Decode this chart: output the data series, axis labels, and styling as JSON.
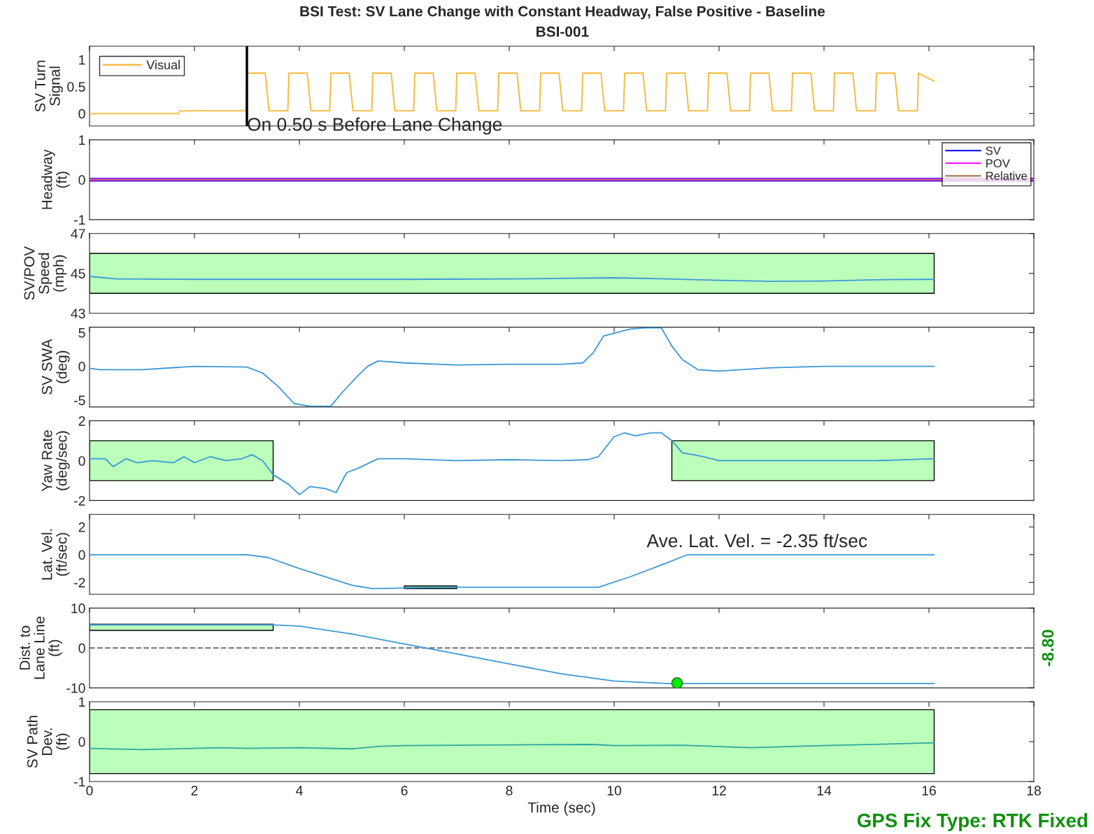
{
  "chart_data": [
    {
      "type": "line",
      "title": "BSI Test: SV Lane Change with Constant Headway, False Positive - Baseline",
      "subtitle": "BSI-001",
      "ylabel": "SV Turn\nSignal",
      "xlim": [
        0,
        18
      ],
      "xticks": [
        0,
        2,
        4,
        6,
        8,
        10,
        12,
        14,
        16,
        18
      ],
      "ylim": [
        -0.23,
        1.25
      ],
      "yticks": [
        0,
        0.5,
        1
      ],
      "tick_labels": "y",
      "legend": "top left",
      "line_style": "solid",
      "grid": false,
      "marker": "none",
      "series": [
        {
          "name": "Visual",
          "color": "#f7b534",
          "x": [
            0,
            1.7,
            1.72,
            2.98,
            3.0,
            3.35,
            3.42,
            3.78,
            3.8,
            4.15,
            4.22,
            4.58,
            4.6,
            4.95,
            5.02,
            5.38,
            5.4,
            5.75,
            5.82,
            6.18,
            6.2,
            6.55,
            6.62,
            6.98,
            7.0,
            7.35,
            7.42,
            7.78,
            7.8,
            8.15,
            8.22,
            8.58,
            8.6,
            8.95,
            9.02,
            9.38,
            9.4,
            9.75,
            9.82,
            10.18,
            10.2,
            10.55,
            10.62,
            10.98,
            11.0,
            11.35,
            11.42,
            11.78,
            11.8,
            12.15,
            12.22,
            12.58,
            12.6,
            12.95,
            13.02,
            13.38,
            13.4,
            13.75,
            13.82,
            14.18,
            14.2,
            14.55,
            14.62,
            14.98,
            15.0,
            15.35,
            15.42,
            15.78,
            15.8,
            16.1
          ],
          "values": [
            0,
            0,
            0.05,
            0.05,
            0.75,
            0.75,
            0.05,
            0.05,
            0.75,
            0.75,
            0.05,
            0.05,
            0.75,
            0.75,
            0.05,
            0.05,
            0.75,
            0.75,
            0.05,
            0.05,
            0.75,
            0.75,
            0.05,
            0.05,
            0.75,
            0.75,
            0.05,
            0.05,
            0.75,
            0.75,
            0.05,
            0.05,
            0.75,
            0.75,
            0.05,
            0.05,
            0.75,
            0.75,
            0.05,
            0.05,
            0.75,
            0.75,
            0.05,
            0.05,
            0.75,
            0.75,
            0.05,
            0.05,
            0.75,
            0.75,
            0.05,
            0.05,
            0.75,
            0.75,
            0.05,
            0.05,
            0.75,
            0.75,
            0.05,
            0.05,
            0.75,
            0.75,
            0.05,
            0.05,
            0.75,
            0.75,
            0.05,
            0.05,
            0.75,
            0.6
          ]
        }
      ],
      "ref_lines": [
        {
          "axis": "x",
          "value": 3.0,
          "label": "On 0.50 s Before Lane Change",
          "color": "#000000",
          "line_style": "solid"
        }
      ]
    },
    {
      "type": "line",
      "ylabel": "Headway\n(ft)",
      "xlim": [
        0,
        18
      ],
      "xticks": [
        0,
        2,
        4,
        6,
        8,
        10,
        12,
        14,
        16,
        18
      ],
      "ylim": [
        -1,
        1
      ],
      "yticks": [
        -1,
        0,
        1
      ],
      "tick_labels": "y",
      "legend": "top right",
      "line_style": "solid",
      "grid": false,
      "marker": "none",
      "series": [
        {
          "name": "SV",
          "color": "#0000ff",
          "x": [
            0,
            18
          ],
          "values": [
            0,
            0
          ]
        },
        {
          "name": "POV",
          "color": "#ff00ff",
          "x": [
            0,
            18
          ],
          "values": [
            0,
            0
          ]
        },
        {
          "name": "Relative",
          "color": "#a57a57",
          "x": [
            0,
            18
          ],
          "values": [
            0,
            0
          ]
        }
      ]
    },
    {
      "type": "line",
      "ylabel": "SV/POV\nSpeed\n(mph)",
      "xlim": [
        0,
        18
      ],
      "xticks": [
        0,
        2,
        4,
        6,
        8,
        10,
        12,
        14,
        16,
        18
      ],
      "ylim": [
        43,
        47
      ],
      "yticks": [
        43,
        45,
        47
      ],
      "tick_labels": "y",
      "line_style": "solid",
      "grid": false,
      "marker": "none",
      "series": [
        {
          "color": "#3b98d8",
          "x": [
            0,
            0.5,
            2,
            4,
            6,
            8,
            10,
            11,
            12,
            13,
            14,
            15,
            16.1
          ],
          "values": [
            44.85,
            44.72,
            44.7,
            44.7,
            44.7,
            44.72,
            44.78,
            44.72,
            44.65,
            44.6,
            44.62,
            44.68,
            44.7
          ],
          "lower": [
            44,
            44,
            44,
            44,
            44,
            44,
            44,
            44,
            44,
            44,
            44,
            44,
            44
          ],
          "upper": [
            46,
            46,
            46,
            46,
            46,
            46,
            46,
            46,
            46,
            46,
            46,
            46,
            46
          ]
        }
      ]
    },
    {
      "type": "line",
      "ylabel": "SV SWA\n(deg)",
      "xlim": [
        0,
        18
      ],
      "xticks": [
        0,
        2,
        4,
        6,
        8,
        10,
        12,
        14,
        16,
        18
      ],
      "ylim": [
        -6,
        5.8
      ],
      "yticks": [
        -5,
        0,
        5
      ],
      "tick_labels": "y",
      "line_style": "solid",
      "grid": false,
      "marker": "none",
      "series": [
        {
          "color": "#3b98d8",
          "x": [
            0,
            0.2,
            1,
            2,
            3,
            3.3,
            3.6,
            3.9,
            4.2,
            4.6,
            4.8,
            5.1,
            5.3,
            5.5,
            6,
            7,
            8,
            9,
            9.4,
            9.6,
            9.8,
            10.3,
            10.6,
            10.9,
            11.1,
            11.3,
            11.6,
            12,
            13,
            14,
            15,
            16.1
          ],
          "values": [
            -0.3,
            -0.5,
            -0.5,
            0,
            -0.1,
            -1,
            -3,
            -5.5,
            -5.9,
            -5.9,
            -4,
            -1.5,
            0,
            0.8,
            0.5,
            0.2,
            0.3,
            0.3,
            0.5,
            2,
            4.5,
            5.5,
            5.7,
            5.7,
            3,
            1,
            -0.5,
            -0.7,
            -0.2,
            0,
            0,
            0
          ]
        }
      ]
    },
    {
      "type": "line",
      "ylabel": "Yaw Rate\n(deg/sec)",
      "xlim": [
        0,
        18
      ],
      "xticks": [
        0,
        2,
        4,
        6,
        8,
        10,
        12,
        14,
        16,
        18
      ],
      "ylim": [
        -2,
        2
      ],
      "yticks": [
        -2,
        0,
        2
      ],
      "tick_labels": "y",
      "line_style": "solid",
      "grid": false,
      "marker": "none",
      "series": [
        {
          "color": "#3b98d8",
          "x": [
            0,
            0.3,
            0.45,
            0.7,
            0.9,
            1.2,
            1.6,
            1.8,
            2,
            2.3,
            2.6,
            2.9,
            3.1,
            3.3,
            3.5,
            3.8,
            4.0,
            4.2,
            4.5,
            4.7,
            4.9,
            5.1,
            5.5,
            6,
            7,
            8,
            9,
            9.5,
            9.7,
            10,
            10.2,
            10.4,
            10.7,
            10.9,
            11.1,
            11.3,
            11.7,
            12,
            13,
            14,
            15,
            16.1
          ],
          "values": [
            0.1,
            0.1,
            -0.3,
            0.1,
            -0.1,
            0,
            -0.1,
            0.2,
            -0.1,
            0.2,
            0,
            0.1,
            0.3,
            0,
            -0.7,
            -1.2,
            -1.7,
            -1.3,
            -1.4,
            -1.6,
            -0.6,
            -0.4,
            0.1,
            0.1,
            0,
            0.05,
            0,
            0.05,
            0.2,
            1.2,
            1.4,
            1.25,
            1.4,
            1.4,
            1,
            0.4,
            0.2,
            0,
            0,
            0,
            0,
            0.1
          ],
          "lower": [
            -1,
            -1,
            -1,
            -1,
            -1,
            -1,
            -1,
            -1,
            -1,
            -1,
            -1,
            -1,
            -1,
            -1,
            -1,
            null,
            null,
            null,
            null,
            null,
            null,
            null,
            null,
            null,
            null,
            null,
            null,
            null,
            null,
            null,
            null,
            null,
            null,
            null,
            -1,
            -1,
            -1,
            -1,
            -1,
            -1,
            -1,
            -1
          ],
          "upper": [
            1,
            1,
            1,
            1,
            1,
            1,
            1,
            1,
            1,
            1,
            1,
            1,
            1,
            1,
            1,
            null,
            null,
            null,
            null,
            null,
            null,
            null,
            null,
            null,
            null,
            null,
            null,
            null,
            null,
            null,
            null,
            null,
            null,
            null,
            1,
            1,
            1,
            1,
            1,
            1,
            1,
            1
          ]
        }
      ]
    },
    {
      "type": "line",
      "ylabel": "Lat. Vel.\n(ft/sec)",
      "xlim": [
        0,
        18
      ],
      "xticks": [
        0,
        2,
        4,
        6,
        8,
        10,
        12,
        14,
        16,
        18
      ],
      "ylim": [
        -2.85,
        2.9
      ],
      "yticks": [
        -2,
        0,
        2
      ],
      "tick_labels": "y",
      "line_style": "solid",
      "grid": false,
      "marker": "none",
      "annotations": [
        "Ave. Lat. Vel. = -2.35 ft/sec"
      ],
      "series": [
        {
          "color": "#3b98d8",
          "x": [
            0,
            3,
            3.4,
            4,
            5,
            5.4,
            6,
            7,
            9.7,
            10.3,
            11,
            11.4,
            12,
            16.1
          ],
          "values": [
            0,
            0,
            -0.2,
            -1,
            -2.2,
            -2.45,
            -2.4,
            -2.35,
            -2.35,
            -1.6,
            -0.6,
            0,
            0,
            0
          ],
          "lower": [
            null,
            null,
            null,
            null,
            null,
            null,
            -2.45,
            -2.45,
            null,
            null,
            null,
            null,
            null,
            null
          ],
          "upper": [
            null,
            null,
            null,
            null,
            null,
            null,
            -2.25,
            -2.25,
            null,
            null,
            null,
            null,
            null,
            null
          ]
        }
      ]
    },
    {
      "type": "line",
      "ylabel": "Dist. to\nLane Line\n(ft)",
      "xlim": [
        0,
        18
      ],
      "xticks": [
        0,
        2,
        4,
        6,
        8,
        10,
        12,
        14,
        16,
        18
      ],
      "ylim": [
        -10,
        10
      ],
      "yticks": [
        -10,
        0,
        10
      ],
      "tick_labels": "y",
      "line_style": "solid",
      "grid": false,
      "marker": "none",
      "annotations": [
        "-8.80"
      ],
      "series": [
        {
          "color": "#3b98d8",
          "x": [
            0,
            3.5,
            4,
            5,
            6,
            7,
            8,
            9,
            10,
            11,
            12,
            16.1
          ],
          "values": [
            5.8,
            5.8,
            5.5,
            3.5,
            1,
            -1.5,
            -4,
            -6.5,
            -8.3,
            -8.9,
            -8.9,
            -8.9
          ],
          "lower": [
            4.4,
            4.4,
            null,
            null,
            null,
            null,
            null,
            null,
            null,
            null,
            null,
            null
          ],
          "upper": [
            5.96,
            5.96,
            null,
            null,
            null,
            null,
            null,
            null,
            null,
            null,
            null,
            null
          ]
        },
        {
          "type": "scatter",
          "marker": "circle",
          "color": "#00ee00",
          "x": [
            11.2
          ],
          "values": [
            -8.8
          ]
        }
      ],
      "ref_lines": [
        {
          "axis": "y",
          "value": 0,
          "color": "#808080",
          "line_style": "dashed"
        }
      ]
    },
    {
      "type": "line",
      "ylabel": "SV Path\nDev.\n(ft)",
      "xlabel": "Time (sec)",
      "xlim": [
        0,
        18
      ],
      "xticks": [
        0,
        2,
        4,
        6,
        8,
        10,
        12,
        14,
        16,
        18
      ],
      "ylim": [
        -1,
        1
      ],
      "yticks": [
        -1,
        0,
        1
      ],
      "line_style": "solid",
      "grid": false,
      "marker": "none",
      "annotations": [
        "GPS Fix Type: RTK Fixed"
      ],
      "series": [
        {
          "color": "#2fa6a0",
          "x": [
            0,
            1,
            2.5,
            3,
            4,
            5,
            5.5,
            6,
            8,
            9.6,
            10,
            11.3,
            12.6,
            14,
            16.1
          ],
          "values": [
            -0.17,
            -0.2,
            -0.15,
            -0.17,
            -0.15,
            -0.18,
            -0.12,
            -0.1,
            -0.08,
            -0.07,
            -0.1,
            -0.09,
            -0.15,
            -0.1,
            -0.03
          ],
          "lower": [
            -0.8,
            -0.8,
            -0.8,
            -0.8,
            -0.8,
            -0.8,
            -0.8,
            -0.8,
            -0.8,
            -0.8,
            -0.8,
            -0.8,
            -0.8,
            -0.8,
            -0.8
          ],
          "upper": [
            0.8,
            0.8,
            0.8,
            0.8,
            0.8,
            0.8,
            0.8,
            0.8,
            0.8,
            0.8,
            0.8,
            0.8,
            0.8,
            0.8,
            0.8
          ]
        }
      ]
    }
  ]
}
